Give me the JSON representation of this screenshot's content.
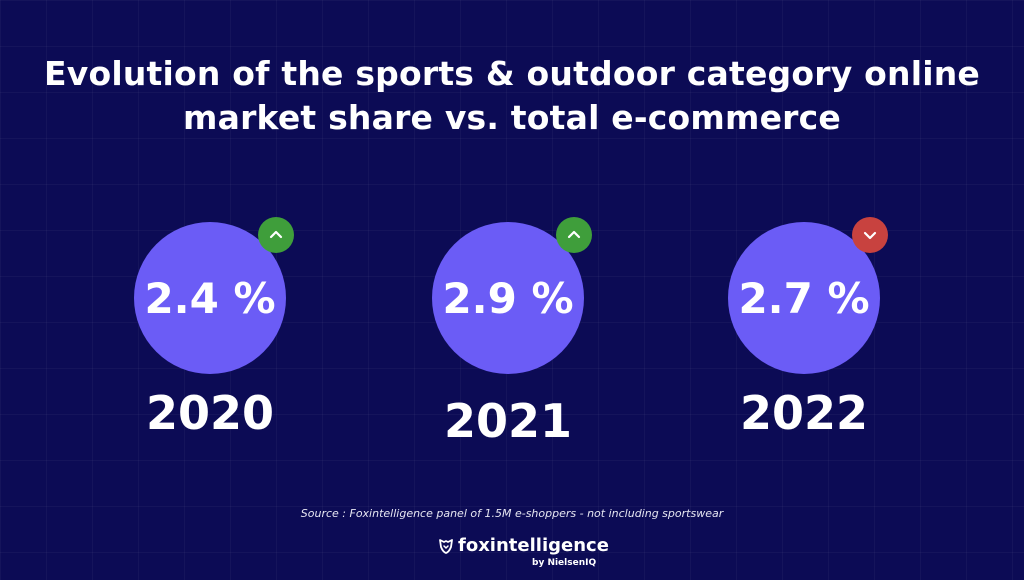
{
  "title_lines": [
    "Evolution of the sports & outdoor category online",
    "market share vs. total e-commerce"
  ],
  "colors": {
    "background": "#0c0b55",
    "circle": "#6b5cf6",
    "trend_up": "#3f9e3b",
    "trend_down": "#c8423f"
  },
  "chart_data": {
    "type": "kpi",
    "title": "Evolution of the sports & outdoor category online market share vs. total e-commerce",
    "unit": "%",
    "items": [
      {
        "year": "2020",
        "value": 2.4,
        "label": "2.4 %",
        "trend": "up",
        "trend_icon": "chevron-up-icon"
      },
      {
        "year": "2021",
        "value": 2.9,
        "label": "2.9 %",
        "trend": "up",
        "trend_icon": "chevron-up-icon"
      },
      {
        "year": "2022",
        "value": 2.7,
        "label": "2.7 %",
        "trend": "down",
        "trend_icon": "chevron-down-icon"
      }
    ]
  },
  "footer": {
    "source": "Source : Foxintelligence panel of 1.5M e-shoppers - not including sportswear",
    "logo_icon": "fox-shield-icon",
    "brand": "foxintelligence",
    "brand_sub": "by NielsenIQ"
  }
}
